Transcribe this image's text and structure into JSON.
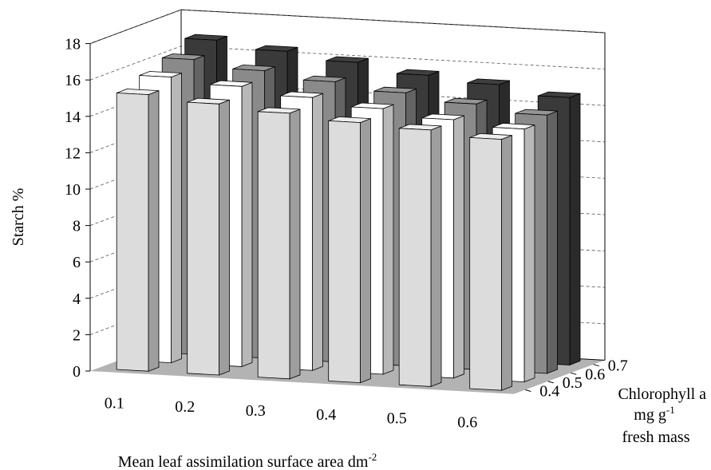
{
  "chart_data": {
    "type": "bar",
    "subtype": "3d-grouped-bar",
    "title": "",
    "xlabel": "Mean leaf assimilation surface area dm",
    "xlabel_sup": "-2",
    "ylabel": "Starch %",
    "zlabel_line1": "Chlorophyll a",
    "zlabel_line2": "mg g",
    "zlabel_line2_sup": "-1",
    "zlabel_line3": "fresh mass",
    "ylim": [
      0,
      18
    ],
    "y_ticks": [
      "0",
      "2",
      "4",
      "6",
      "8",
      "10",
      "12",
      "14",
      "16",
      "18"
    ],
    "categories": [
      "0.1",
      "0.2",
      "0.3",
      "0.4",
      "0.5",
      "0.6"
    ],
    "depth_categories": [
      "0.4",
      "0.5",
      "0.6",
      "0.7"
    ],
    "grid": true,
    "legend": "none",
    "series": [
      {
        "depth": "0.4",
        "color": "#dcdcdc",
        "values": [
          15.2,
          14.9,
          14.6,
          14.3,
          14.1,
          13.8
        ]
      },
      {
        "depth": "0.5",
        "color": "#ffffff",
        "values": [
          15.7,
          15.4,
          15.0,
          14.6,
          14.2,
          13.9
        ]
      },
      {
        "depth": "0.6",
        "color": "#8a8a8a",
        "values": [
          16.2,
          15.8,
          15.4,
          15.0,
          14.6,
          14.2
        ]
      },
      {
        "depth": "0.7",
        "color": "#3a3a3a",
        "values": [
          16.8,
          16.4,
          16.0,
          15.5,
          15.2,
          14.7
        ]
      }
    ]
  }
}
